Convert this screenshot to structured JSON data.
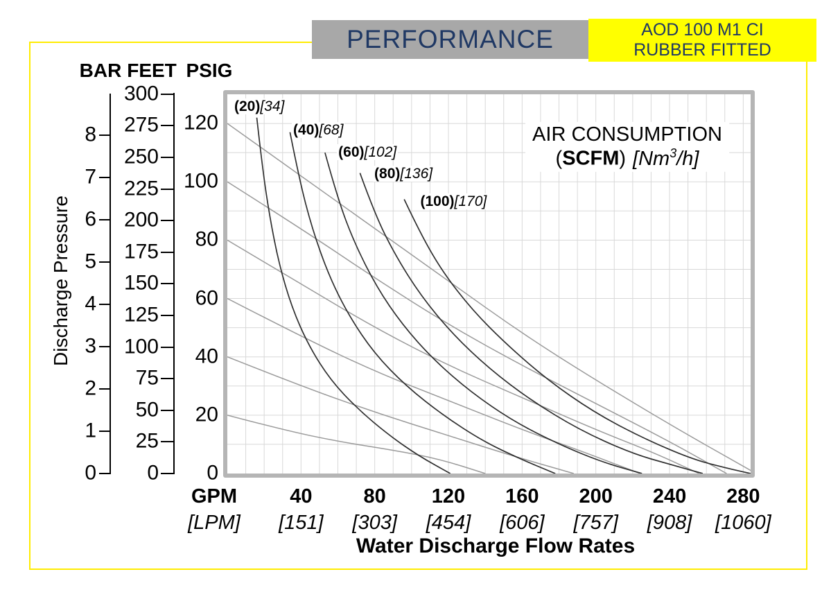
{
  "header": {
    "performance_label": "PERFORMANCE",
    "model_line1": "AOD 100 M1 CI",
    "model_line2": "RUBBER FITTED",
    "performance_bg": "#a8a8a8",
    "model_bg": "#ffff00",
    "text_color": "#1f3864"
  },
  "page": {
    "border_color": "#ffec00",
    "background": "#ffffff"
  },
  "left_axes": {
    "rotated_label": "Discharge Pressure",
    "bar_unit": "BAR",
    "feet_unit": "FEET",
    "psig_unit": "PSIG"
  },
  "x_axis": {
    "unit_primary": "GPM",
    "unit_secondary": "[LPM]",
    "title": "Water Discharge Flow Rates"
  },
  "annotation": {
    "line1": "AIR CONSUMPTION",
    "paren_open": "(",
    "scfm": "SCFM",
    "paren_close": ")",
    "nm_open": "[Nm",
    "exponent": "3",
    "nm_close": "/h]"
  },
  "colors": {
    "grid": "#d8d8d8",
    "frame": "#b5b5b5",
    "dark_curve": "#2f2f2f",
    "gray_curve": "#9a9a9a",
    "axis": "#000000"
  },
  "chart_data": {
    "type": "line",
    "title": "PERFORMANCE",
    "subtitle": "AOD 100 M1 CI RUBBER FITTED",
    "xlabel": "Water Discharge Flow Rates",
    "ylabel": "Discharge Pressure",
    "x_unit_primary": "GPM",
    "x_unit_secondary": "LPM",
    "y_units": [
      "PSIG",
      "FEET",
      "BAR"
    ],
    "x_range_gpm": [
      0,
      284
    ],
    "y_range_psig": [
      0,
      130
    ],
    "grid_step_gpm": 10,
    "grid_step_psig": 10,
    "grid_on": true,
    "x_ticks": [
      {
        "gpm": 40,
        "lpm": 151
      },
      {
        "gpm": 80,
        "lpm": 303
      },
      {
        "gpm": 120,
        "lpm": 454
      },
      {
        "gpm": 160,
        "lpm": 606
      },
      {
        "gpm": 200,
        "lpm": 757
      },
      {
        "gpm": 240,
        "lpm": 908
      },
      {
        "gpm": 280,
        "lpm": 1060
      }
    ],
    "y_ticks_psig": [
      120,
      100,
      80,
      60,
      40,
      20,
      0
    ],
    "y_ticks_feet": [
      300,
      275,
      250,
      225,
      200,
      175,
      150,
      125,
      100,
      75,
      50,
      25,
      0
    ],
    "y_ticks_bar": [
      8,
      7,
      6,
      5,
      4,
      3,
      2,
      1,
      0
    ],
    "annotation": "AIR CONSUMPTION (SCFM) [Nm3/h]",
    "performance_curves": [
      {
        "air_inlet_psig": 20,
        "points_gpm_psig": [
          [
            0,
            20
          ],
          [
            30,
            15
          ],
          [
            60,
            11
          ],
          [
            90,
            8
          ],
          [
            115,
            5
          ],
          [
            140,
            0
          ]
        ]
      },
      {
        "air_inlet_psig": 40,
        "points_gpm_psig": [
          [
            0,
            40
          ],
          [
            40,
            30
          ],
          [
            80,
            21
          ],
          [
            120,
            13
          ],
          [
            155,
            6
          ],
          [
            188,
            0
          ]
        ]
      },
      {
        "air_inlet_psig": 60,
        "points_gpm_psig": [
          [
            0,
            60
          ],
          [
            40,
            47
          ],
          [
            80,
            35
          ],
          [
            120,
            25
          ],
          [
            160,
            15
          ],
          [
            195,
            7
          ],
          [
            224,
            0
          ]
        ]
      },
      {
        "air_inlet_psig": 80,
        "points_gpm_psig": [
          [
            0,
            80
          ],
          [
            40,
            65
          ],
          [
            80,
            50
          ],
          [
            120,
            37
          ],
          [
            160,
            26
          ],
          [
            200,
            15
          ],
          [
            232,
            7
          ],
          [
            256,
            0
          ]
        ]
      },
      {
        "air_inlet_psig": 100,
        "points_gpm_psig": [
          [
            0,
            100
          ],
          [
            40,
            84
          ],
          [
            80,
            67
          ],
          [
            120,
            51
          ],
          [
            160,
            37
          ],
          [
            200,
            24
          ],
          [
            240,
            11
          ],
          [
            271,
            0
          ]
        ]
      },
      {
        "air_inlet_psig": 120,
        "points_gpm_psig": [
          [
            0,
            120
          ],
          [
            40,
            102
          ],
          [
            80,
            84
          ],
          [
            120,
            66
          ],
          [
            160,
            48
          ],
          [
            200,
            32
          ],
          [
            245,
            15
          ],
          [
            287,
            0
          ]
        ]
      }
    ],
    "air_consumption_curves": [
      {
        "scfm": 20,
        "nm3h": 34,
        "label_scfm": "(20)",
        "label_nm3h": "[34]",
        "label_pos_gpm_psig": [
          3,
          128.5
        ],
        "points_gpm_psig": [
          [
            16,
            122
          ],
          [
            19,
            105
          ],
          [
            23,
            88
          ],
          [
            28,
            72
          ],
          [
            35,
            57
          ],
          [
            44,
            44
          ],
          [
            56,
            32
          ],
          [
            71,
            22
          ],
          [
            88,
            13
          ],
          [
            104,
            6
          ],
          [
            121,
            0
          ]
        ]
      },
      {
        "scfm": 40,
        "nm3h": 68,
        "label_scfm": "(40)",
        "label_nm3h": "[68]",
        "label_pos_gpm_psig": [
          35,
          120.5
        ],
        "points_gpm_psig": [
          [
            34,
            117
          ],
          [
            39,
            101
          ],
          [
            46,
            84
          ],
          [
            55,
            68
          ],
          [
            66,
            54
          ],
          [
            80,
            41
          ],
          [
            97,
            30
          ],
          [
            117,
            20
          ],
          [
            139,
            11
          ],
          [
            159,
            5
          ],
          [
            178,
            0
          ]
        ]
      },
      {
        "scfm": 60,
        "nm3h": 102,
        "label_scfm": "(60)",
        "label_nm3h": "[102]",
        "label_pos_gpm_psig": [
          59.5,
          113
        ],
        "points_gpm_psig": [
          [
            53,
            110
          ],
          [
            60,
            94
          ],
          [
            69,
            79
          ],
          [
            81,
            64
          ],
          [
            95,
            51
          ],
          [
            112,
            39
          ],
          [
            132,
            28
          ],
          [
            155,
            18
          ],
          [
            180,
            10
          ],
          [
            203,
            4
          ],
          [
            225,
            0
          ]
        ]
      },
      {
        "scfm": 80,
        "nm3h": 136,
        "label_scfm": "(80)",
        "label_nm3h": "[136]",
        "label_pos_gpm_psig": [
          79,
          105.5
        ],
        "points_gpm_psig": [
          [
            72,
            103
          ],
          [
            80,
            89
          ],
          [
            91,
            75
          ],
          [
            105,
            61
          ],
          [
            122,
            48
          ],
          [
            142,
            36
          ],
          [
            165,
            25
          ],
          [
            191,
            15
          ],
          [
            219,
            7
          ],
          [
            241,
            3
          ],
          [
            258,
            0
          ]
        ]
      },
      {
        "scfm": 100,
        "nm3h": 170,
        "label_scfm": "(100)",
        "label_nm3h": "[170]",
        "label_pos_gpm_psig": [
          104,
          96
        ],
        "points_gpm_psig": [
          [
            96,
            94
          ],
          [
            105,
            82
          ],
          [
            117,
            69
          ],
          [
            133,
            56
          ],
          [
            152,
            44
          ],
          [
            174,
            32
          ],
          [
            199,
            21
          ],
          [
            226,
            12
          ],
          [
            252,
            5
          ],
          [
            270,
            2
          ],
          [
            284,
            0
          ]
        ]
      }
    ]
  }
}
